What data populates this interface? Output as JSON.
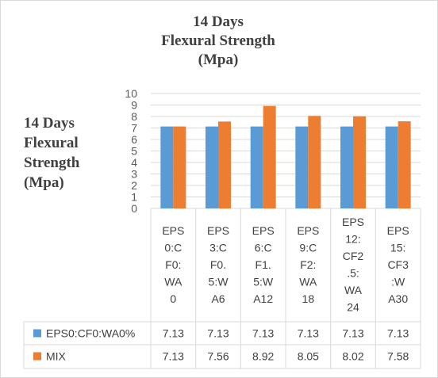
{
  "chart_data": {
    "type": "bar",
    "title": "14 Days\nFlexural Strength\n(Mpa)",
    "ylabel": "14 Days\nFlexural\nStrength\n(Mpa)",
    "xlabel": "",
    "ylim": [
      0,
      10
    ],
    "yticks": [
      0,
      1,
      2,
      3,
      4,
      5,
      6,
      7,
      8,
      9,
      10
    ],
    "grid": true,
    "legend": "data-table",
    "categories": [
      [
        "EPS",
        "0:C",
        "F0:",
        "WA",
        "0"
      ],
      [
        "EPS",
        "3:C",
        "F0.",
        "5:W",
        "A6"
      ],
      [
        "EPS",
        "6:C",
        "F1.",
        "5:W",
        "A12"
      ],
      [
        "EPS",
        "9:C",
        "F2:",
        "WA",
        "18"
      ],
      [
        "EPS",
        "12:",
        "CF2",
        ".5:",
        "WA",
        "24"
      ],
      [
        "EPS",
        "15:",
        "CF3",
        ":W",
        "A30"
      ]
    ],
    "series": [
      {
        "name": "EPS0:CF0:WA0%",
        "color": "#5b9bd5",
        "values": [
          7.13,
          7.13,
          7.13,
          7.13,
          7.13,
          7.13
        ]
      },
      {
        "name": "MIX",
        "color": "#ed7d31",
        "values": [
          7.13,
          7.56,
          8.92,
          8.05,
          8.02,
          7.58
        ]
      }
    ]
  }
}
